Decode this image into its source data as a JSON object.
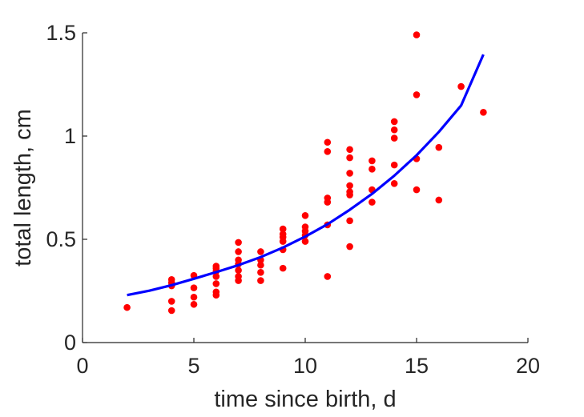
{
  "chart_data": {
    "type": "scatter",
    "xlabel": "time since birth, d",
    "ylabel": "total length, cm",
    "xlim": [
      0,
      20
    ],
    "ylim": [
      0,
      1.5
    ],
    "x_ticks": [
      0,
      5,
      10,
      15,
      20
    ],
    "x_tick_labels": [
      "0",
      "5",
      "10",
      "15",
      "20"
    ],
    "y_ticks": [
      0,
      0.5,
      1,
      1.5
    ],
    "y_tick_labels": [
      "0",
      "0.5",
      "1",
      "1.5"
    ],
    "grid": false,
    "legend": "none",
    "series": [
      {
        "kind": "points",
        "color": "#ff0000",
        "points": [
          [
            2,
            0.17
          ],
          [
            4,
            0.155
          ],
          [
            4,
            0.2
          ],
          [
            4,
            0.275
          ],
          [
            4,
            0.29
          ],
          [
            4,
            0.305
          ],
          [
            5,
            0.185
          ],
          [
            5,
            0.22
          ],
          [
            5,
            0.265
          ],
          [
            5,
            0.325
          ],
          [
            6,
            0.23
          ],
          [
            6,
            0.245
          ],
          [
            6,
            0.285
          ],
          [
            6,
            0.32
          ],
          [
            6,
            0.345
          ],
          [
            6,
            0.36
          ],
          [
            6,
            0.37
          ],
          [
            7,
            0.3
          ],
          [
            7,
            0.32
          ],
          [
            7,
            0.35
          ],
          [
            7,
            0.38
          ],
          [
            7,
            0.4
          ],
          [
            7,
            0.44
          ],
          [
            7,
            0.485
          ],
          [
            8,
            0.3
          ],
          [
            8,
            0.34
          ],
          [
            8,
            0.375
          ],
          [
            8,
            0.4
          ],
          [
            8,
            0.44
          ],
          [
            9,
            0.36
          ],
          [
            9,
            0.45
          ],
          [
            9,
            0.49
          ],
          [
            9,
            0.51
          ],
          [
            9,
            0.525
          ],
          [
            9,
            0.55
          ],
          [
            10,
            0.49
          ],
          [
            10,
            0.52
          ],
          [
            10,
            0.54
          ],
          [
            10,
            0.56
          ],
          [
            10,
            0.615
          ],
          [
            11,
            0.32
          ],
          [
            11,
            0.57
          ],
          [
            11,
            0.68
          ],
          [
            11,
            0.7
          ],
          [
            11,
            0.925
          ],
          [
            11,
            0.97
          ],
          [
            12,
            0.465
          ],
          [
            12,
            0.59
          ],
          [
            12,
            0.715
          ],
          [
            12,
            0.73
          ],
          [
            12,
            0.76
          ],
          [
            12,
            0.82
          ],
          [
            12,
            0.895
          ],
          [
            12,
            0.935
          ],
          [
            13,
            0.68
          ],
          [
            13,
            0.74
          ],
          [
            13,
            0.84
          ],
          [
            13,
            0.88
          ],
          [
            14,
            0.77
          ],
          [
            14,
            0.86
          ],
          [
            14,
            0.99
          ],
          [
            14,
            1.03
          ],
          [
            14,
            1.07
          ],
          [
            15,
            0.74
          ],
          [
            15,
            0.89
          ],
          [
            15,
            1.2
          ],
          [
            15,
            1.49
          ],
          [
            16,
            0.69
          ],
          [
            16,
            0.945
          ],
          [
            17,
            1.24
          ],
          [
            18,
            1.115
          ]
        ]
      },
      {
        "kind": "curve",
        "color": "#0000ff",
        "points": [
          [
            2,
            0.23
          ],
          [
            3,
            0.251
          ],
          [
            4,
            0.278
          ],
          [
            5,
            0.309
          ],
          [
            6,
            0.341
          ],
          [
            7,
            0.375
          ],
          [
            8,
            0.414
          ],
          [
            9,
            0.46
          ],
          [
            10,
            0.513
          ],
          [
            11,
            0.573
          ],
          [
            12,
            0.643
          ],
          [
            13,
            0.72
          ],
          [
            14,
            0.808
          ],
          [
            15,
            0.907
          ],
          [
            16,
            1.02
          ],
          [
            17,
            1.148
          ],
          [
            18,
            1.395
          ]
        ]
      }
    ]
  }
}
